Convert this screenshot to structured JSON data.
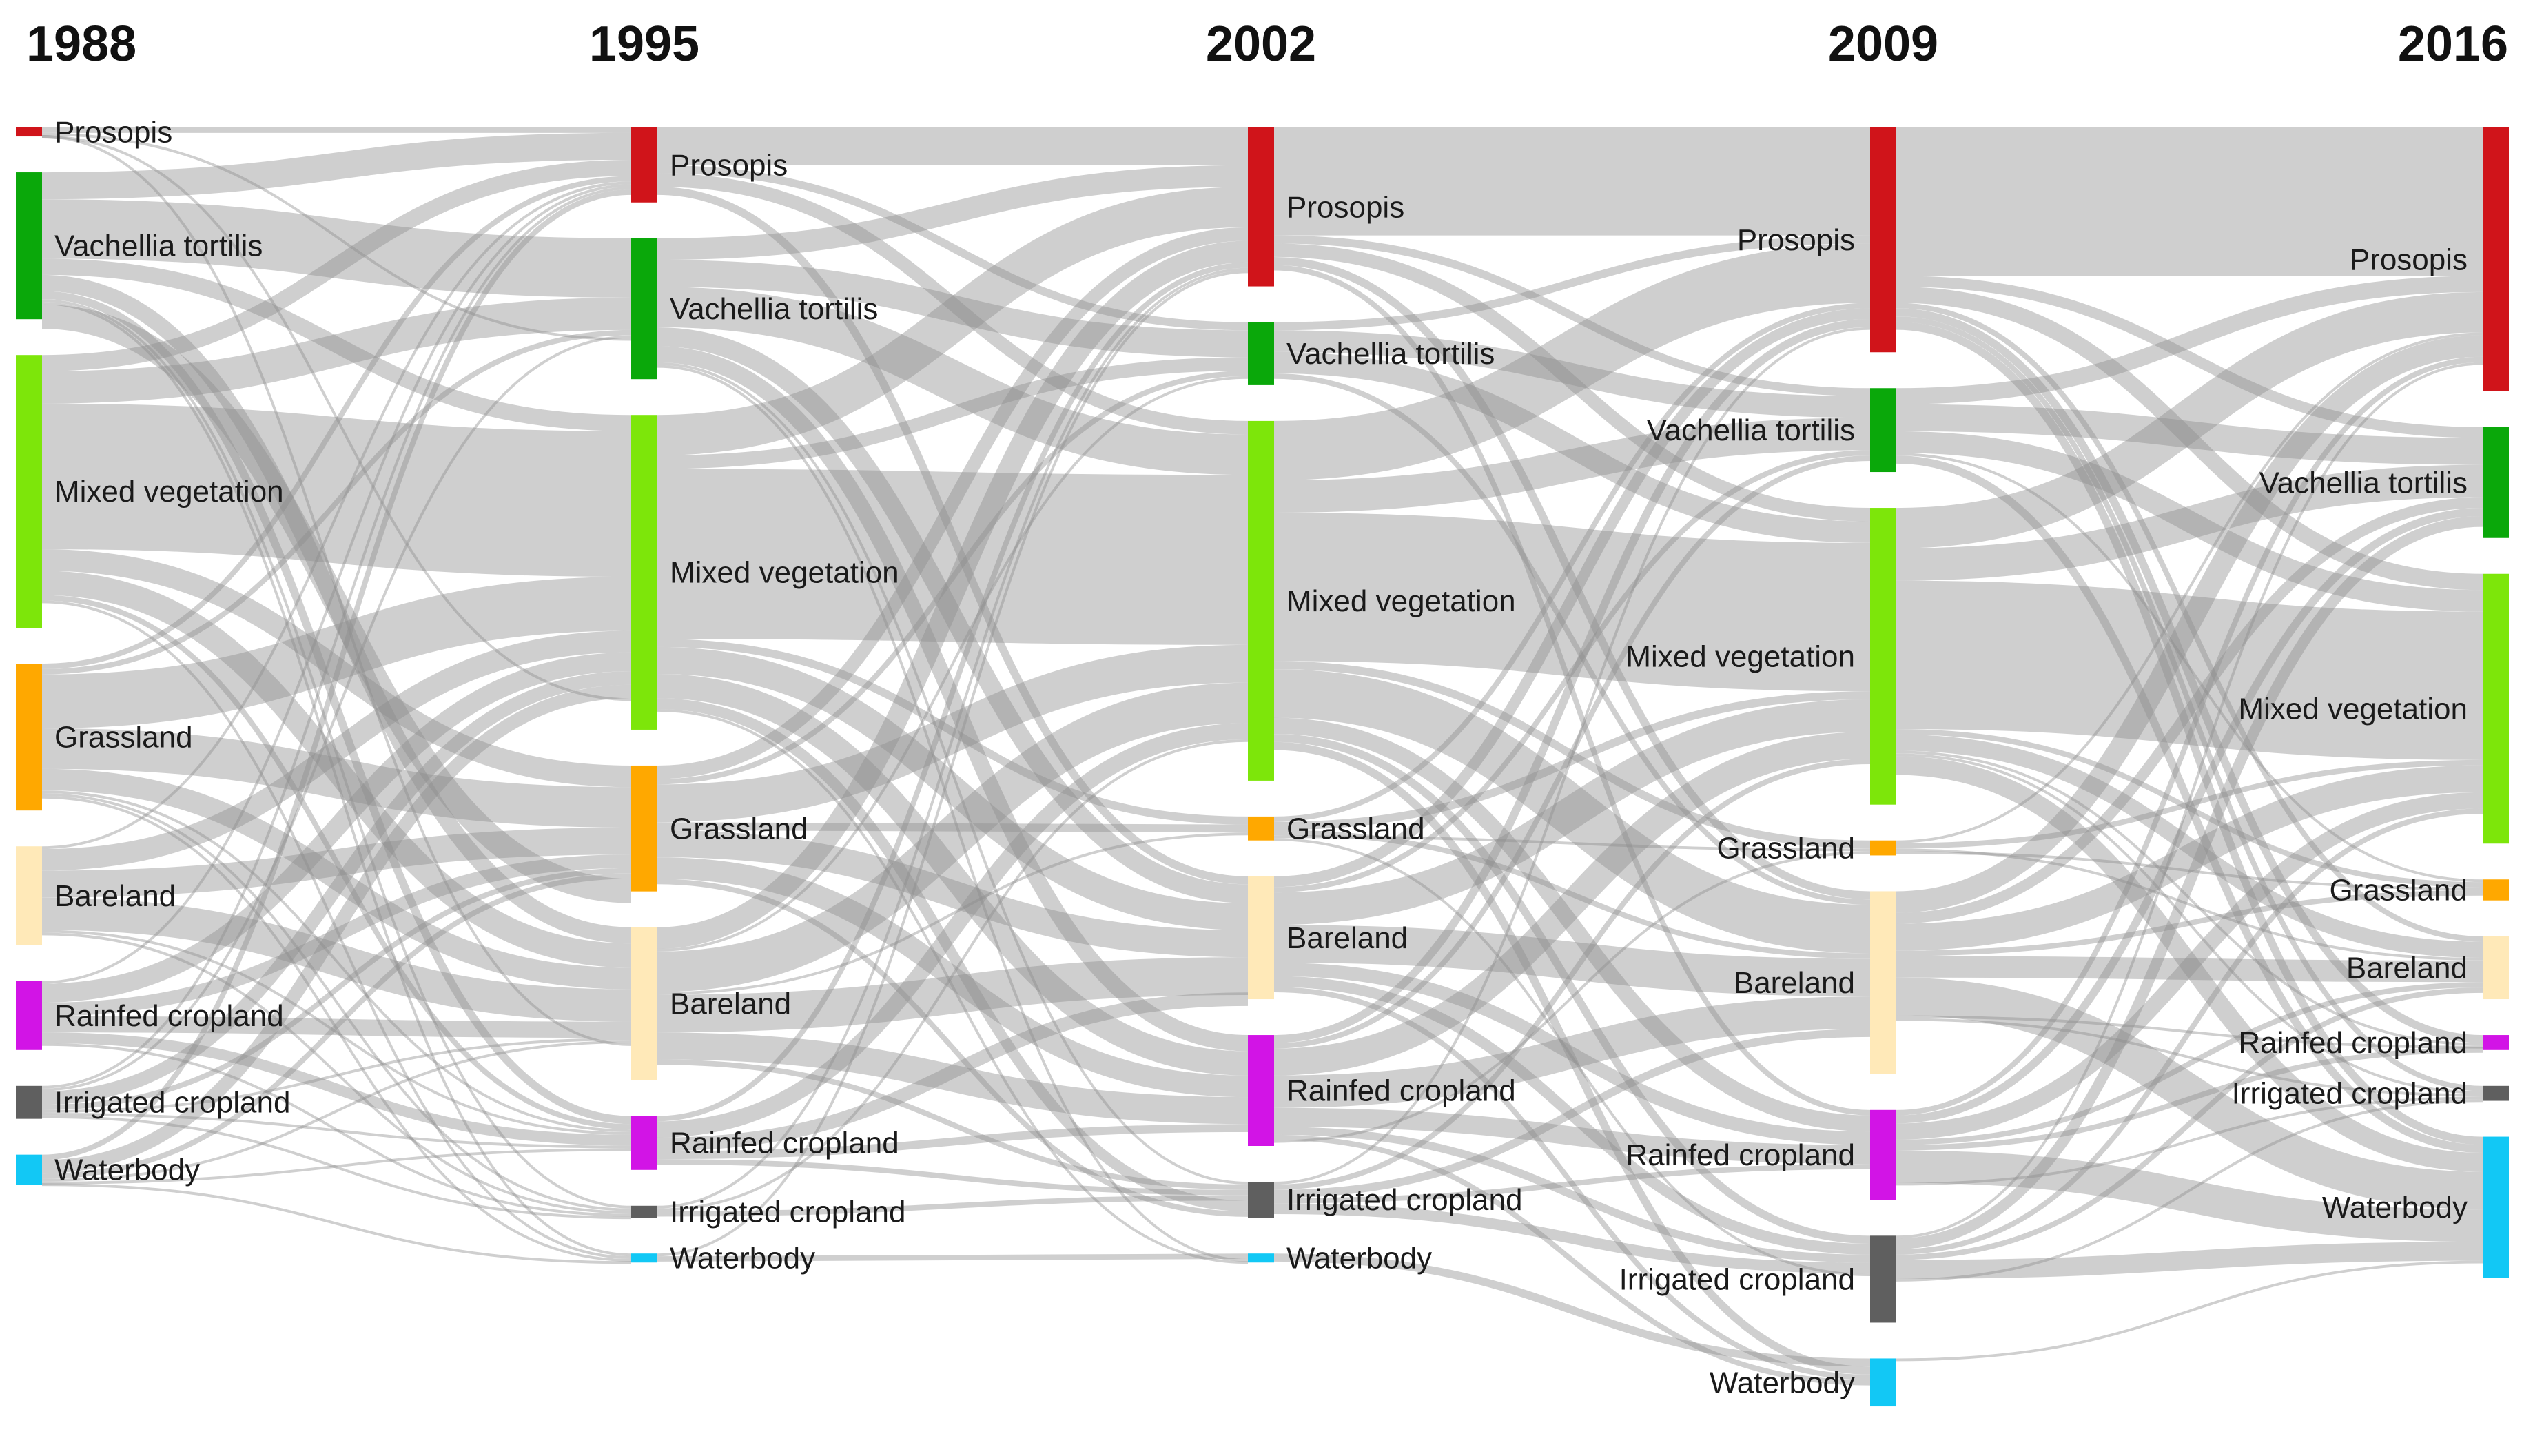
{
  "chart_data": {
    "type": "sankey",
    "title": "",
    "years": [
      "1988",
      "1995",
      "2002",
      "2009",
      "2016"
    ],
    "classes": [
      {
        "name": "Prosopis",
        "color": "#d0141a"
      },
      {
        "name": "Vachellia tortilis",
        "color": "#0aa80a"
      },
      {
        "name": "Mixed vegetation",
        "color": "#7de60a"
      },
      {
        "name": "Grassland",
        "color": "#ffa800"
      },
      {
        "name": "Bareland",
        "color": "#ffe9b8"
      },
      {
        "name": "Rainfed cropland",
        "color": "#d214e6"
      },
      {
        "name": "Irrigated cropland",
        "color": "#5f5f5f"
      },
      {
        "name": "Waterbody",
        "color": "#12c8f5"
      }
    ],
    "area_by_year": {
      "1988": [
        3,
        49,
        91,
        49,
        33,
        23,
        11,
        10
      ],
      "1995": [
        25,
        47,
        105,
        42,
        51,
        18,
        4,
        3
      ],
      "2002": [
        53,
        21,
        120,
        8,
        41,
        37,
        12,
        3
      ],
      "2009": [
        75,
        28,
        99,
        5,
        61,
        30,
        29,
        16
      ],
      "2016": [
        88,
        37,
        90,
        7,
        21,
        5,
        5,
        47
      ]
    },
    "transitions": [
      [
        [
          0,
          0,
          2
        ],
        [
          1,
          0,
          10
        ],
        [
          1,
          1,
          22
        ],
        [
          1,
          2,
          6
        ],
        [
          1,
          4,
          6
        ],
        [
          1,
          5,
          3
        ],
        [
          1,
          6,
          1
        ],
        [
          1,
          7,
          1
        ],
        [
          2,
          0,
          6
        ],
        [
          2,
          1,
          12
        ],
        [
          2,
          2,
          54
        ],
        [
          2,
          3,
          8
        ],
        [
          2,
          4,
          9
        ],
        [
          2,
          5,
          2
        ],
        [
          3,
          0,
          2
        ],
        [
          3,
          1,
          2
        ],
        [
          3,
          2,
          20
        ],
        [
          3,
          3,
          15
        ],
        [
          3,
          4,
          8
        ],
        [
          3,
          5,
          1
        ],
        [
          3,
          6,
          1
        ],
        [
          4,
          0,
          1
        ],
        [
          4,
          2,
          8
        ],
        [
          4,
          3,
          10
        ],
        [
          4,
          4,
          12
        ],
        [
          4,
          5,
          1
        ],
        [
          4,
          6,
          1
        ],
        [
          5,
          0,
          1
        ],
        [
          5,
          2,
          7
        ],
        [
          5,
          3,
          5
        ],
        [
          5,
          4,
          6
        ],
        [
          5,
          5,
          4
        ],
        [
          6,
          0,
          1
        ],
        [
          6,
          1,
          1
        ],
        [
          6,
          2,
          5
        ],
        [
          6,
          3,
          2
        ],
        [
          6,
          4,
          1
        ],
        [
          6,
          5,
          1
        ],
        [
          7,
          0,
          2
        ],
        [
          7,
          2,
          5
        ],
        [
          7,
          3,
          2
        ],
        [
          7,
          4,
          1
        ],
        [
          7,
          5,
          1
        ],
        [
          0,
          1,
          1
        ],
        [
          0,
          2,
          1
        ],
        [
          0,
          4,
          1
        ],
        [
          1,
          3,
          9
        ],
        [
          2,
          7,
          1
        ],
        [
          3,
          7,
          1
        ],
        [
          4,
          4,
          0
        ],
        [
          5,
          6,
          1
        ],
        [
          6,
          6,
          1
        ],
        [
          7,
          7,
          1
        ]
      ],
      [
        [
          0,
          0,
          14
        ],
        [
          0,
          1,
          3
        ],
        [
          0,
          2,
          5
        ],
        [
          0,
          4,
          3
        ],
        [
          1,
          0,
          8
        ],
        [
          1,
          1,
          10
        ],
        [
          1,
          2,
          15
        ],
        [
          1,
          4,
          7
        ],
        [
          1,
          5,
          6
        ],
        [
          1,
          6,
          1
        ],
        [
          2,
          0,
          15
        ],
        [
          2,
          1,
          5
        ],
        [
          2,
          2,
          63
        ],
        [
          2,
          3,
          3
        ],
        [
          2,
          4,
          10
        ],
        [
          2,
          5,
          9
        ],
        [
          3,
          0,
          5
        ],
        [
          3,
          1,
          2
        ],
        [
          3,
          2,
          14
        ],
        [
          3,
          3,
          3
        ],
        [
          3,
          4,
          10
        ],
        [
          3,
          5,
          8
        ],
        [
          4,
          0,
          8
        ],
        [
          4,
          1,
          1
        ],
        [
          4,
          2,
          15
        ],
        [
          4,
          3,
          1
        ],
        [
          4,
          4,
          14
        ],
        [
          4,
          5,
          10
        ],
        [
          4,
          6,
          2
        ],
        [
          5,
          0,
          2
        ],
        [
          5,
          2,
          6
        ],
        [
          5,
          4,
          5
        ],
        [
          5,
          5,
          3
        ],
        [
          5,
          6,
          2
        ],
        [
          6,
          0,
          1
        ],
        [
          6,
          2,
          1
        ],
        [
          6,
          6,
          2
        ],
        [
          7,
          0,
          1
        ],
        [
          7,
          7,
          2
        ],
        [
          0,
          7,
          0
        ],
        [
          1,
          7,
          1
        ],
        [
          2,
          6,
          4
        ],
        [
          2,
          7,
          1
        ],
        [
          3,
          6,
          2
        ],
        [
          4,
          6,
          0
        ],
        [
          5,
          6,
          0
        ],
        [
          6,
          7,
          0
        ]
      ],
      [
        [
          0,
          0,
          40
        ],
        [
          0,
          1,
          3
        ],
        [
          0,
          2,
          5
        ],
        [
          0,
          4,
          3
        ],
        [
          0,
          5,
          2
        ],
        [
          1,
          0,
          3
        ],
        [
          1,
          1,
          8
        ],
        [
          1,
          2,
          8
        ],
        [
          1,
          4,
          2
        ],
        [
          2,
          0,
          22
        ],
        [
          2,
          1,
          12
        ],
        [
          2,
          2,
          55
        ],
        [
          2,
          3,
          3
        ],
        [
          2,
          4,
          18
        ],
        [
          2,
          5,
          6
        ],
        [
          2,
          6,
          3
        ],
        [
          3,
          0,
          2
        ],
        [
          3,
          2,
          3
        ],
        [
          3,
          4,
          2
        ],
        [
          3,
          3,
          1
        ],
        [
          4,
          0,
          4
        ],
        [
          4,
          1,
          2
        ],
        [
          4,
          2,
          12
        ],
        [
          4,
          4,
          14
        ],
        [
          4,
          5,
          5
        ],
        [
          4,
          6,
          4
        ],
        [
          5,
          0,
          3
        ],
        [
          5,
          1,
          2
        ],
        [
          5,
          2,
          10
        ],
        [
          5,
          4,
          12
        ],
        [
          5,
          5,
          7
        ],
        [
          5,
          6,
          3
        ],
        [
          6,
          0,
          1
        ],
        [
          6,
          2,
          2
        ],
        [
          6,
          4,
          3
        ],
        [
          6,
          5,
          2
        ],
        [
          6,
          6,
          4
        ],
        [
          7,
          0,
          0
        ],
        [
          7,
          7,
          3
        ],
        [
          2,
          7,
          3
        ],
        [
          4,
          7,
          2
        ],
        [
          5,
          7,
          2
        ],
        [
          6,
          7,
          0
        ],
        [
          3,
          6,
          1
        ],
        [
          1,
          3,
          0
        ],
        [
          5,
          3,
          1
        ]
      ],
      [
        [
          0,
          0,
          55
        ],
        [
          0,
          1,
          4
        ],
        [
          0,
          2,
          6
        ],
        [
          0,
          4,
          2
        ],
        [
          0,
          5,
          3
        ],
        [
          0,
          6,
          2
        ],
        [
          0,
          7,
          3
        ],
        [
          1,
          0,
          6
        ],
        [
          1,
          1,
          10
        ],
        [
          1,
          2,
          8
        ],
        [
          1,
          3,
          1
        ],
        [
          1,
          7,
          3
        ],
        [
          2,
          0,
          15
        ],
        [
          2,
          1,
          12
        ],
        [
          2,
          2,
          55
        ],
        [
          2,
          3,
          2
        ],
        [
          2,
          4,
          6
        ],
        [
          2,
          5,
          1
        ],
        [
          2,
          6,
          1
        ],
        [
          2,
          7,
          7
        ],
        [
          3,
          0,
          1
        ],
        [
          3,
          2,
          2
        ],
        [
          3,
          4,
          1
        ],
        [
          3,
          3,
          1
        ],
        [
          4,
          0,
          8
        ],
        [
          4,
          1,
          4
        ],
        [
          4,
          2,
          10
        ],
        [
          4,
          3,
          2
        ],
        [
          4,
          4,
          8
        ],
        [
          4,
          7,
          14
        ],
        [
          4,
          5,
          1
        ],
        [
          4,
          6,
          1
        ],
        [
          5,
          0,
          2
        ],
        [
          5,
          1,
          3
        ],
        [
          5,
          2,
          6
        ],
        [
          5,
          4,
          2
        ],
        [
          5,
          5,
          2
        ],
        [
          5,
          7,
          12
        ],
        [
          5,
          6,
          1
        ],
        [
          6,
          0,
          1
        ],
        [
          6,
          1,
          4
        ],
        [
          6,
          2,
          2
        ],
        [
          6,
          4,
          2
        ],
        [
          6,
          7,
          7
        ],
        [
          6,
          6,
          1
        ],
        [
          7,
          0,
          0
        ],
        [
          7,
          7,
          1
        ]
      ]
    ]
  }
}
